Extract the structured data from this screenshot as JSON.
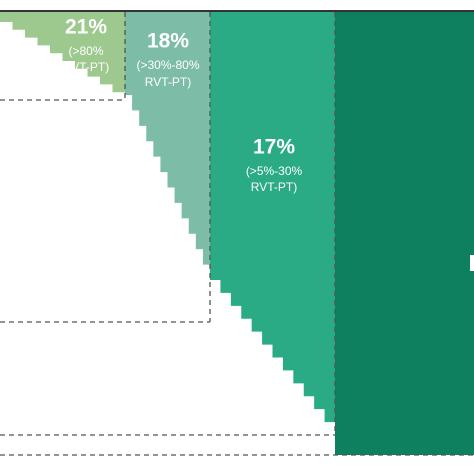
{
  "chart_data": {
    "type": "segments",
    "segments": [
      {
        "value": 21,
        "value_label": "21%",
        "label_lines": [
          "(>80%",
          "RVT-PT)"
        ],
        "color": "#9dc98e"
      },
      {
        "value": 18,
        "value_label": "18%",
        "label_lines": [
          "(>30%-80%",
          "RVT-PT)"
        ],
        "color": "#7dbda8"
      },
      {
        "value": 17,
        "value_label": "17%",
        "label_lines": [
          "(>5%-30%",
          "RVT-PT)"
        ],
        "color": "#2aab86"
      }
    ]
  }
}
